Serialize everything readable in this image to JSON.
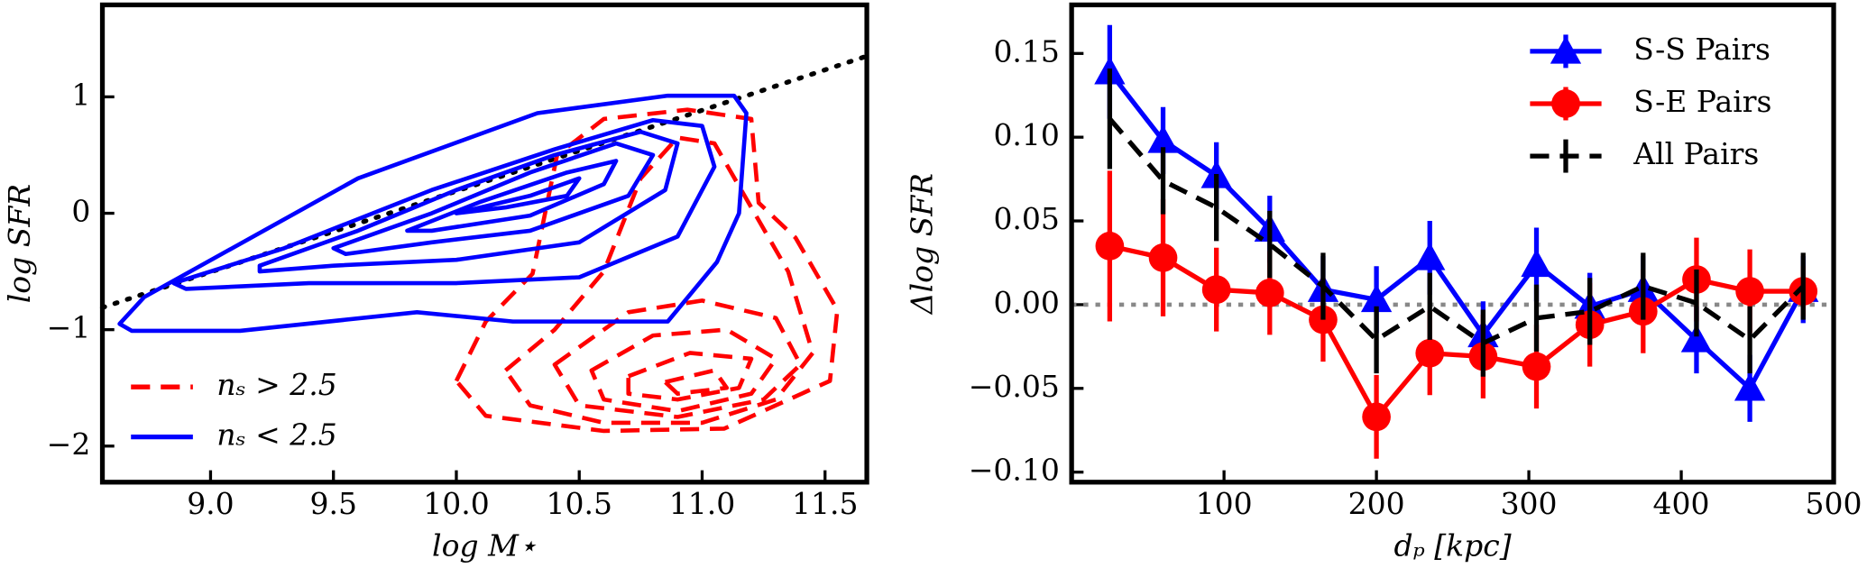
{
  "chart_data": [
    {
      "type": "contour",
      "xlabel": "log M⋆",
      "ylabel": "log SFR",
      "xlim": [
        8.56,
        11.67
      ],
      "ylim": [
        -2.31,
        1.79
      ],
      "xticks": [
        {
          "value": 9,
          "label": "9.0"
        },
        9.5,
        {
          "value": 10,
          "label": "10.0"
        },
        10.5,
        {
          "value": 11,
          "label": "11.0"
        },
        11.5
      ],
      "yticks": [
        1,
        0,
        {
          "value": -1,
          "label": "−1"
        },
        {
          "value": -2,
          "label": "−2"
        }
      ],
      "legend": "lower left",
      "reference_line": {
        "x": [
          8.56,
          11.67
        ],
        "y": [
          -0.81,
          1.35
        ],
        "color": "#000000",
        "linestyle": "dotted"
      },
      "series": [
        {
          "name": "nₛ > 2.5",
          "color": "#ff0000",
          "linestyle": "dashed",
          "contours": [
            {
              "x": [
                10.0,
                10.12,
                10.31,
                10.41,
                10.6,
                10.94,
                11.2,
                11.23,
                11.38,
                11.55,
                11.52,
                11.09,
                10.6,
                10.12
              ],
              "y": [
                -1.44,
                -0.93,
                -0.52,
                0.5,
                0.81,
                0.89,
                0.81,
                0.09,
                -0.21,
                -0.83,
                -1.44,
                -1.85,
                -1.87,
                -1.74
              ]
            },
            {
              "x": [
                10.2,
                10.4,
                10.6,
                10.75,
                10.9,
                11.05,
                11.35,
                11.45,
                11.3,
                11.0,
                10.6,
                10.3
              ],
              "y": [
                -1.35,
                -1.0,
                -0.5,
                0.3,
                0.65,
                0.6,
                -0.5,
                -1.2,
                -1.6,
                -1.8,
                -1.8,
                -1.65
              ]
            },
            {
              "x": [
                10.4,
                10.7,
                11.0,
                11.3,
                11.4,
                11.25,
                10.9,
                10.5
              ],
              "y": [
                -1.3,
                -0.85,
                -0.75,
                -0.9,
                -1.3,
                -1.6,
                -1.75,
                -1.65
              ]
            },
            {
              "x": [
                10.55,
                10.8,
                11.1,
                11.3,
                11.2,
                10.9,
                10.6
              ],
              "y": [
                -1.35,
                -1.05,
                -1.0,
                -1.25,
                -1.55,
                -1.7,
                -1.6
              ]
            },
            {
              "x": [
                10.7,
                10.95,
                11.2,
                11.15,
                10.9,
                10.7
              ],
              "y": [
                -1.4,
                -1.2,
                -1.25,
                -1.5,
                -1.6,
                -1.55
              ]
            },
            {
              "x": [
                10.85,
                11.05,
                11.1,
                10.9
              ],
              "y": [
                -1.45,
                -1.35,
                -1.5,
                -1.55
              ]
            }
          ]
        },
        {
          "name": "nₛ < 2.5",
          "color": "#0000ff",
          "linestyle": "solid",
          "contours": [
            {
              "x": [
                8.63,
                8.73,
                9.6,
                10.33,
                10.86,
                11.13,
                11.18,
                11.15,
                11.06,
                10.86,
                10.23,
                9.84,
                9.12,
                8.68
              ],
              "y": [
                -0.95,
                -0.72,
                0.3,
                0.86,
                1.01,
                1.01,
                0.86,
                0.0,
                -0.42,
                -0.93,
                -0.93,
                -0.85,
                -1.01,
                -1.01
              ]
            },
            {
              "x": [
                8.85,
                9.3,
                9.9,
                10.4,
                10.8,
                11.0,
                11.05,
                10.9,
                10.5,
                10.0,
                9.4,
                8.9
              ],
              "y": [
                -0.6,
                -0.3,
                0.2,
                0.55,
                0.8,
                0.75,
                0.4,
                -0.2,
                -0.55,
                -0.6,
                -0.6,
                -0.65
              ]
            },
            {
              "x": [
                9.2,
                9.6,
                10.0,
                10.4,
                10.75,
                10.9,
                10.85,
                10.5,
                10.0,
                9.5,
                9.2
              ],
              "y": [
                -0.45,
                -0.15,
                0.2,
                0.5,
                0.7,
                0.6,
                0.2,
                -0.25,
                -0.4,
                -0.45,
                -0.5
              ]
            },
            {
              "x": [
                9.5,
                9.9,
                10.3,
                10.65,
                10.8,
                10.7,
                10.3,
                9.9,
                9.55
              ],
              "y": [
                -0.3,
                0.0,
                0.35,
                0.6,
                0.5,
                0.15,
                -0.15,
                -0.25,
                -0.35
              ]
            },
            {
              "x": [
                9.8,
                10.1,
                10.45,
                10.65,
                10.6,
                10.3,
                9.9
              ],
              "y": [
                -0.15,
                0.1,
                0.35,
                0.45,
                0.25,
                -0.02,
                -0.15
              ]
            },
            {
              "x": [
                10.0,
                10.3,
                10.5,
                10.45,
                10.2,
                10.0
              ],
              "y": [
                0.0,
                0.15,
                0.3,
                0.15,
                0.05,
                0.0
              ]
            }
          ]
        }
      ]
    },
    {
      "type": "errorbar",
      "xlabel": "dₚ [kpc]",
      "ylabel": "Δlog SFR",
      "xlim": [
        0,
        500
      ],
      "ylim": [
        -0.106,
        0.179
      ],
      "xticks": [
        100,
        200,
        300,
        400,
        500
      ],
      "yticks": [
        {
          "value": 0.15,
          "label": "0.15"
        },
        {
          "value": 0.1,
          "label": "0.10"
        },
        {
          "value": 0.05,
          "label": "0.05"
        },
        {
          "value": 0,
          "label": "0.00"
        },
        {
          "value": -0.05,
          "label": "−0.05"
        },
        {
          "value": -0.1,
          "label": "−0.10"
        }
      ],
      "hline": 0,
      "legend": "upper right",
      "x": [
        25,
        60,
        95,
        130,
        165,
        200,
        235,
        270,
        305,
        340,
        375,
        410,
        445,
        480
      ],
      "series": [
        {
          "name": "S-S Pairs",
          "color": "#0000ff",
          "marker": "triangle",
          "linestyle": "solid",
          "values": [
            0.139,
            0.098,
            0.077,
            0.045,
            0.009,
            0.003,
            0.028,
            -0.018,
            0.024,
            -0.001,
            0.009,
            -0.021,
            -0.05,
            0.009
          ],
          "errors": [
            0.028,
            0.02,
            0.02,
            0.02,
            0.02,
            0.02,
            0.022,
            0.02,
            0.022,
            0.02,
            0.02,
            0.02,
            0.02,
            0.02
          ]
        },
        {
          "name": "S-E Pairs",
          "color": "#ff0000",
          "marker": "circle",
          "linestyle": "solid",
          "values": [
            0.035,
            0.028,
            0.009,
            0.007,
            -0.009,
            -0.067,
            -0.029,
            -0.031,
            -0.037,
            -0.012,
            -0.004,
            0.015,
            0.008,
            0.008
          ],
          "errors": [
            0.045,
            0.035,
            0.025,
            0.025,
            0.025,
            0.025,
            0.025,
            0.025,
            0.025,
            0.025,
            0.025,
            0.025,
            0.025,
            0.015
          ]
        },
        {
          "name": "All Pairs",
          "color": "#000000",
          "marker": "none",
          "linestyle": "dashed",
          "values": [
            0.111,
            0.074,
            0.058,
            0.036,
            0.011,
            -0.021,
            -0.001,
            -0.023,
            -0.008,
            -0.004,
            0.011,
            0.001,
            -0.021,
            0.011
          ],
          "errors": [
            0.03,
            0.02,
            0.02,
            0.02,
            0.02,
            0.02,
            0.02,
            0.02,
            0.02,
            0.02,
            0.02,
            0.02,
            0.02,
            0.02
          ]
        }
      ]
    }
  ]
}
